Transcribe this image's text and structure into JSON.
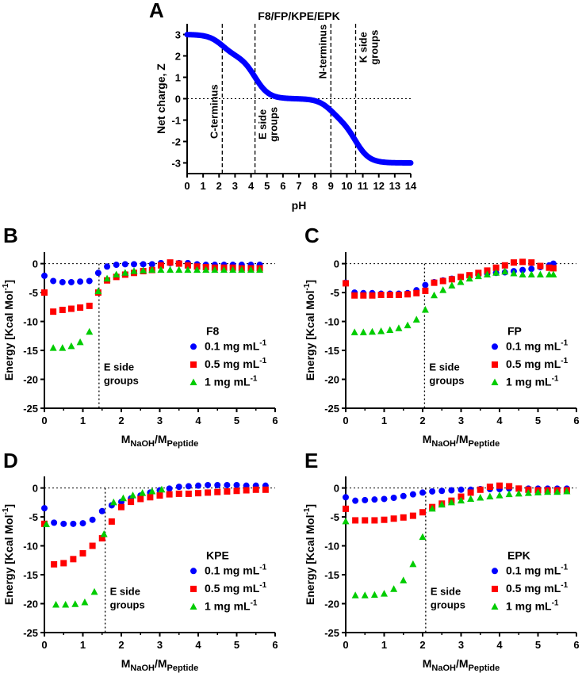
{
  "chart_data": [
    {
      "panel": "A",
      "type": "line",
      "title": "F8/FP/KPE/EPK",
      "xlabel": "pH",
      "ylabel": "Net charge, Z",
      "xlim": [
        0,
        14
      ],
      "ylim": [
        -3.5,
        3.5
      ],
      "xticks": [
        "0",
        "1",
        "2",
        "3",
        "4",
        "5",
        "6",
        "7",
        "8",
        "9",
        "10",
        "11",
        "12",
        "13",
        "14"
      ],
      "yticks": [
        "3",
        "2",
        "1",
        "0",
        "-1",
        "-2",
        "-3"
      ],
      "color": "#0000ff",
      "pKa": [
        2.2,
        4.25,
        9.0,
        10.55
      ],
      "vlines": [
        2.2,
        4.25,
        9.0,
        10.55
      ],
      "annotations": [
        "C-terminus",
        "E side",
        "groups",
        "N-terminus",
        "K side",
        "groups"
      ]
    },
    {
      "panel": "B",
      "type": "scatter",
      "sample": "F8",
      "xlabel_main": "M",
      "xlabel_sub1": "NaOH",
      "xlabel_sep": "/M",
      "xlabel_sub2": "Peptide",
      "ylabel": "Energy [Kcal Mol",
      "ylabel_sup": "-1",
      "ylabel_end": "]",
      "xlim": [
        0,
        6
      ],
      "ylim": [
        -25,
        2
      ],
      "xticks": [
        "0",
        "1",
        "2",
        "3",
        "4",
        "5",
        "6"
      ],
      "yticks": [
        "0",
        "-5",
        "-10",
        "-15",
        "-20",
        "-25"
      ],
      "vline": 1.42,
      "annot1": "E side",
      "annot2": "groups",
      "series": [
        {
          "name": "0.1 mg mL",
          "sup": "-1",
          "marker": "circle",
          "color": "#0000ff",
          "x": [
            0,
            0.23,
            0.47,
            0.7,
            0.93,
            1.17,
            1.4,
            1.63,
            1.87,
            2.1,
            2.33,
            2.57,
            2.8,
            3.03,
            3.27,
            3.5,
            3.73,
            3.97,
            4.2,
            4.43,
            4.67,
            4.9,
            5.13,
            5.37,
            5.6
          ],
          "y": [
            -2.1,
            -3.0,
            -3.2,
            -3.2,
            -3.1,
            -3.0,
            -1.6,
            -0.5,
            -0.2,
            -0.1,
            -0.1,
            -0.1,
            -0.1,
            0.1,
            0.1,
            0.1,
            0.1,
            -0.1,
            -0.2,
            -0.2,
            -0.2,
            -0.2,
            -0.2,
            -0.2,
            -0.2
          ]
        },
        {
          "name": "0.5 mg mL",
          "sup": "-1",
          "marker": "square",
          "color": "#ff0000",
          "x": [
            0,
            0.23,
            0.47,
            0.7,
            0.93,
            1.17,
            1.4,
            1.63,
            1.87,
            2.1,
            2.33,
            2.57,
            2.8,
            3.03,
            3.27,
            3.5,
            3.73,
            3.97,
            4.2,
            4.43,
            4.67,
            4.9,
            5.13,
            5.37,
            5.6
          ],
          "y": [
            -5.0,
            -8.3,
            -8.0,
            -7.8,
            -7.6,
            -7.3,
            -5.0,
            -2.9,
            -2.3,
            -1.9,
            -1.6,
            -1.3,
            -1.1,
            -0.3,
            0.2,
            0.0,
            -0.3,
            -0.5,
            -0.6,
            -0.7,
            -0.7,
            -0.7,
            -0.8,
            -0.8,
            -0.8
          ]
        },
        {
          "name": "1 mg mL",
          "sup": "-1",
          "marker": "triangle",
          "color": "#00cc00",
          "x": [
            0.23,
            0.47,
            0.7,
            0.93,
            1.17,
            1.4,
            1.63,
            1.87,
            2.1,
            2.33,
            2.57,
            2.8,
            3.03,
            3.27,
            3.5,
            3.73,
            3.97,
            4.2,
            4.43,
            4.67,
            4.9,
            5.13,
            5.37,
            5.6
          ],
          "y": [
            -14.6,
            -14.6,
            -14.3,
            -13.6,
            -11.8,
            -4.8,
            -2.6,
            -1.9,
            -1.6,
            -1.3,
            -1.2,
            -1.1,
            -1.1,
            -1.1,
            -1.1,
            -1.1,
            -1.1,
            -1.1,
            -1.1,
            -1.1,
            -1.1,
            -1.1,
            -1.1,
            -1.1
          ]
        }
      ]
    },
    {
      "panel": "C",
      "type": "scatter",
      "sample": "FP",
      "xlabel_main": "M",
      "xlabel_sub1": "NaOH",
      "xlabel_sep": "/M",
      "xlabel_sub2": "Peptide",
      "ylabel": "Energy [Kcal Mol",
      "ylabel_sup": "-1",
      "ylabel_end": "]",
      "xlim": [
        0,
        6
      ],
      "ylim": [
        -25,
        2
      ],
      "xticks": [
        "0",
        "1",
        "2",
        "3",
        "4",
        "5",
        "6"
      ],
      "yticks": [
        "0",
        "-5",
        "-10",
        "-15",
        "-20",
        "-25"
      ],
      "vline": 2.05,
      "annot1": "E side",
      "annot2": "groups",
      "series": [
        {
          "name": "0.1 mg mL",
          "sup": "-1",
          "marker": "circle",
          "color": "#0000ff",
          "x": [
            0,
            0.23,
            0.46,
            0.69,
            0.92,
            1.15,
            1.38,
            1.61,
            1.84,
            2.07,
            2.3,
            2.53,
            2.76,
            2.99,
            3.22,
            3.45,
            3.68,
            3.91,
            4.14,
            4.37,
            4.6,
            4.83,
            5.06,
            5.29,
            5.4
          ],
          "y": [
            -3.3,
            -5.0,
            -5.1,
            -5.1,
            -5.2,
            -5.2,
            -5.2,
            -5.1,
            -4.6,
            -3.7,
            -3.2,
            -2.9,
            -2.6,
            -2.3,
            -2.1,
            -1.9,
            -1.7,
            -1.6,
            -1.5,
            -1.3,
            -1.1,
            -0.9,
            -0.6,
            -0.3,
            0.0
          ]
        },
        {
          "name": "0.5 mg mL",
          "sup": "-1",
          "marker": "square",
          "color": "#ff0000",
          "x": [
            0,
            0.23,
            0.46,
            0.69,
            0.92,
            1.15,
            1.38,
            1.61,
            1.84,
            2.07,
            2.3,
            2.53,
            2.76,
            2.99,
            3.22,
            3.45,
            3.68,
            3.91,
            4.14,
            4.37,
            4.6,
            4.83,
            5.06,
            5.29,
            5.4
          ],
          "y": [
            -3.4,
            -5.5,
            -5.5,
            -5.5,
            -5.4,
            -5.4,
            -5.4,
            -5.3,
            -5.1,
            -4.7,
            -3.3,
            -3.0,
            -2.7,
            -2.3,
            -2.0,
            -1.6,
            -1.2,
            -0.7,
            -0.3,
            0.2,
            0.3,
            0.2,
            -0.4,
            -0.7,
            -0.8
          ]
        },
        {
          "name": "1 mg mL",
          "sup": "-1",
          "marker": "triangle",
          "color": "#00cc00",
          "x": [
            0.23,
            0.46,
            0.69,
            0.92,
            1.15,
            1.38,
            1.61,
            1.84,
            2.07,
            2.3,
            2.53,
            2.76,
            2.99,
            3.22,
            3.45,
            3.68,
            3.91,
            4.14,
            4.37,
            4.6,
            4.83,
            5.06,
            5.29,
            5.4
          ],
          "y": [
            -11.9,
            -11.9,
            -11.8,
            -11.7,
            -11.5,
            -11.2,
            -10.7,
            -9.7,
            -8.0,
            -5.5,
            -4.6,
            -3.8,
            -3.2,
            -2.6,
            -2.2,
            -1.9,
            -1.6,
            -1.4,
            -1.7,
            -1.9,
            -1.9,
            -1.9,
            -1.9,
            -1.9
          ]
        }
      ]
    },
    {
      "panel": "D",
      "type": "scatter",
      "sample": "KPE",
      "xlabel_main": "M",
      "xlabel_sub1": "NaOH",
      "xlabel_sep": "/M",
      "xlabel_sub2": "Peptide",
      "ylabel": "Energy [Kcal Mol",
      "ylabel_sup": "-1",
      "ylabel_end": "]",
      "xlim": [
        0,
        6
      ],
      "ylim": [
        -25,
        2
      ],
      "xticks": [
        "0",
        "1",
        "2",
        "3",
        "4",
        "5",
        "6"
      ],
      "yticks": [
        "0",
        "-5",
        "-10",
        "-15",
        "-20",
        "-25"
      ],
      "vline": 1.58,
      "annot1": "E side",
      "annot2": "groups",
      "series": [
        {
          "name": "0.1 mg mL",
          "sup": "-1",
          "marker": "circle",
          "color": "#0000ff",
          "x": [
            0,
            0.25,
            0.5,
            0.75,
            1.0,
            1.25,
            1.5,
            1.75,
            2.0,
            2.25,
            2.5,
            2.75,
            3.0,
            3.25,
            3.5,
            3.75,
            4.0,
            4.25,
            4.5,
            4.75,
            5.0,
            5.25,
            5.5,
            5.75
          ],
          "y": [
            -3.5,
            -6.0,
            -6.2,
            -6.2,
            -6.1,
            -5.5,
            -4.0,
            -3.0,
            -2.4,
            -1.8,
            -1.3,
            -0.8,
            -0.4,
            -0.1,
            0.2,
            0.3,
            0.4,
            0.5,
            0.5,
            0.5,
            0.5,
            0.4,
            0.4,
            0.4
          ]
        },
        {
          "name": "0.5 mg mL",
          "sup": "-1",
          "marker": "square",
          "color": "#ff0000",
          "x": [
            0,
            0.25,
            0.5,
            0.75,
            1.0,
            1.25,
            1.5,
            1.75,
            2.0,
            2.25,
            2.5,
            2.75,
            3.0,
            3.25,
            3.5,
            3.75,
            4.0,
            4.25,
            4.5,
            4.75,
            5.0,
            5.25,
            5.5,
            5.75
          ],
          "y": [
            -6.2,
            -13.2,
            -13.0,
            -12.3,
            -11.3,
            -10.0,
            -8.7,
            -5.8,
            -3.3,
            -2.4,
            -1.9,
            -1.6,
            -1.3,
            -1.1,
            -1.0,
            -1.0,
            -0.9,
            -0.8,
            -0.7,
            -0.6,
            -0.5,
            -0.4,
            -0.3,
            -0.3
          ]
        },
        {
          "name": "1 mg mL",
          "sup": "-1",
          "marker": "triangle",
          "color": "#00cc00",
          "x": [
            0.05,
            0.3,
            0.55,
            0.8,
            1.05,
            1.3,
            1.55,
            1.8,
            2.05,
            2.3,
            2.55,
            2.8,
            3.05
          ],
          "y": [
            -6.3,
            -20.2,
            -20.2,
            -20.1,
            -19.8,
            -18.0,
            -8.0,
            -2.5,
            -1.8,
            -1.3,
            -0.9,
            -0.6,
            -0.3
          ]
        }
      ]
    },
    {
      "panel": "E",
      "type": "scatter",
      "sample": "EPK",
      "xlabel_main": "M",
      "xlabel_sub1": "NaOH",
      "xlabel_sep": "/M",
      "xlabel_sub2": "Peptide",
      "ylabel": "Energy [Kcal Mol",
      "ylabel_sup": "-1",
      "ylabel_end": "]",
      "xlim": [
        0,
        6
      ],
      "ylim": [
        -25,
        2
      ],
      "xticks": [
        "0",
        "1",
        "2",
        "3",
        "4",
        "5",
        "6"
      ],
      "yticks": [
        "0",
        "-5",
        "-10",
        "-15",
        "-20",
        "-25"
      ],
      "vline": 2.08,
      "annot1": "E side",
      "annot2": "groups",
      "series": [
        {
          "name": "0.1 mg mL",
          "sup": "-1",
          "marker": "circle",
          "color": "#0000ff",
          "x": [
            0,
            0.25,
            0.5,
            0.75,
            1.0,
            1.25,
            1.5,
            1.75,
            2.0,
            2.25,
            2.5,
            2.75,
            3.0,
            3.25,
            3.5,
            3.75,
            4.0,
            4.25,
            4.5,
            4.75,
            5.0,
            5.25,
            5.5,
            5.75
          ],
          "y": [
            -1.6,
            -2.2,
            -2.1,
            -2.0,
            -1.9,
            -1.7,
            -1.4,
            -1.1,
            -0.8,
            -0.6,
            -0.5,
            -0.4,
            -0.3,
            -0.3,
            -0.2,
            -0.2,
            -0.2,
            -0.1,
            -0.1,
            -0.1,
            -0.1,
            -0.1,
            -0.1,
            -0.1
          ]
        },
        {
          "name": "0.5 mg mL",
          "sup": "-1",
          "marker": "square",
          "color": "#ff0000",
          "x": [
            0,
            0.25,
            0.5,
            0.75,
            1.0,
            1.25,
            1.5,
            1.75,
            2.0,
            2.25,
            2.5,
            2.75,
            3.0,
            3.25,
            3.5,
            3.75,
            4.0,
            4.25,
            4.5,
            4.75,
            5.0,
            5.25,
            5.5,
            5.75
          ],
          "y": [
            -3.6,
            -5.6,
            -5.6,
            -5.6,
            -5.5,
            -5.3,
            -5.1,
            -4.8,
            -4.2,
            -3.3,
            -2.7,
            -2.2,
            -1.5,
            -0.8,
            -0.3,
            0.2,
            0.4,
            0.3,
            -0.1,
            -0.3,
            -0.4,
            -0.4,
            -0.4,
            -0.4
          ]
        },
        {
          "name": "1 mg mL",
          "sup": "-1",
          "marker": "triangle",
          "color": "#00cc00",
          "x": [
            0,
            0.25,
            0.5,
            0.75,
            1.0,
            1.25,
            1.5,
            1.75,
            2.0,
            2.25,
            2.5,
            2.75,
            3.0,
            3.25,
            3.5,
            3.75,
            4.0,
            4.25,
            4.5,
            4.75,
            5.0,
            5.25,
            5.5,
            5.75
          ],
          "y": [
            -5.8,
            -18.6,
            -18.6,
            -18.5,
            -18.3,
            -17.5,
            -16.0,
            -13.2,
            -8.5,
            -3.6,
            -2.9,
            -2.5,
            -2.2,
            -1.9,
            -1.7,
            -1.5,
            -1.3,
            -1.1,
            -1.0,
            -0.9,
            -0.8,
            -0.7,
            -0.7,
            -0.6
          ]
        }
      ]
    }
  ]
}
